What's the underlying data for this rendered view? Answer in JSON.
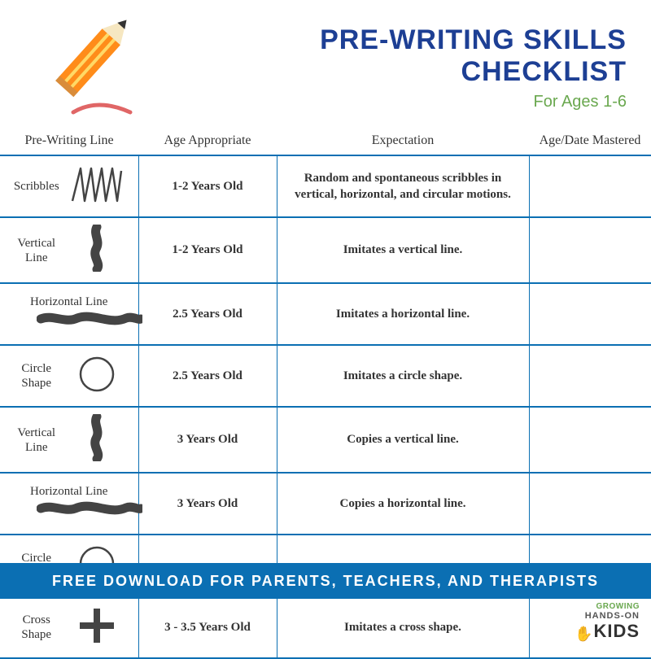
{
  "colors": {
    "title": "#1d3f94",
    "subtitle": "#6aa84f",
    "rowBorder": "#0b6fb3",
    "banner": "#0b6fb3",
    "iconFill": "#444444",
    "pencilBody": "#ff8c1a",
    "pencilStripe": "#ffd966",
    "pencilTip": "#f6e7c1",
    "pencilLead": "#333333",
    "squiggle": "#e06666"
  },
  "header": {
    "title": "PRE-WRITING SKILLS CHECKLIST",
    "subtitle": "For Ages 1-6"
  },
  "columns": {
    "line": "Pre-Writing Line",
    "age": "Age Appropriate",
    "exp": "Expectation",
    "mast": "Age/Date Mastered"
  },
  "rows": [
    {
      "label": "Scribbles",
      "icon": "scribble",
      "age": "1-2 Years Old",
      "exp": "Random and spontaneous scribbles in vertical, horizontal, and circular motions."
    },
    {
      "label": "Vertical Line",
      "icon": "vline",
      "age": "1-2 Years Old",
      "exp": "Imitates a vertical line."
    },
    {
      "label": "Horizontal Line",
      "icon": "hline",
      "age": "2.5 Years Old",
      "exp": "Imitates a horizontal line."
    },
    {
      "label": "Circle Shape",
      "icon": "circle",
      "age": "2.5 Years Old",
      "exp": "Imitates a circle shape."
    },
    {
      "label": "Vertical Line",
      "icon": "vline",
      "age": "3 Years Old",
      "exp": "Copies a vertical line."
    },
    {
      "label": "Horizontal Line",
      "icon": "hline",
      "age": "3 Years Old",
      "exp": "Copies a horizontal line."
    },
    {
      "label": "Circle Shape",
      "icon": "circle-partial",
      "age": "",
      "exp": ""
    },
    {
      "label": "Cross Shape",
      "icon": "cross",
      "age": "3 - 3.5 Years Old",
      "exp": "Imitates a cross shape."
    }
  ],
  "banner": "FREE DOWNLOAD FOR PARENTS, TEACHERS, AND THERAPISTS",
  "logo": {
    "l1": "GROWING",
    "l2": "HANDS-ON",
    "l3": "KIDS"
  }
}
